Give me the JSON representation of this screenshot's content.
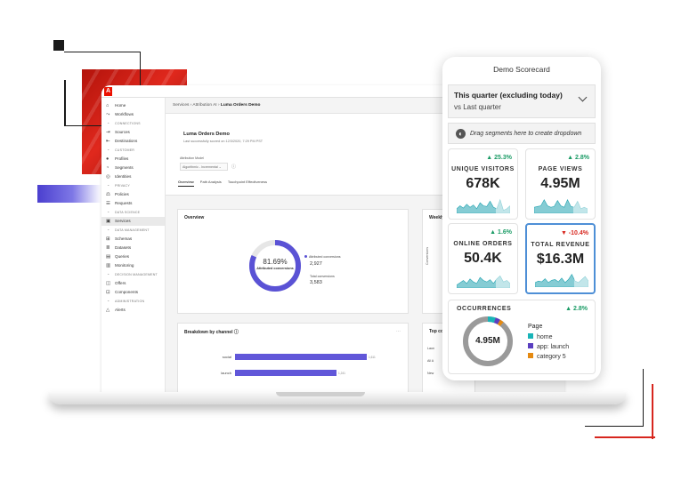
{
  "app": {
    "logo": "adobe-logo",
    "breadcrumb": {
      "root": "Services",
      "middle": "Attribution AI",
      "current": "Luma Orders Demo"
    },
    "page": {
      "title": "Luma Orders Demo",
      "subtitle": "Last successfully scored on 12/3/2020, 7:29 PM PST",
      "model_label": "Attribution Model",
      "model_value": "Algorithmic - Incremental"
    },
    "tabs": [
      "Overview",
      "Path Analysis",
      "Touchpoint Effectiveness"
    ],
    "sidebar": {
      "items": [
        {
          "type": "item",
          "label": "Home",
          "icon": "home-icon"
        },
        {
          "type": "item",
          "label": "Workflows",
          "icon": "workflow-icon"
        },
        {
          "type": "section",
          "label": "CONNECTIONS"
        },
        {
          "type": "item",
          "label": "Sources",
          "icon": "sources-icon"
        },
        {
          "type": "item",
          "label": "Destinations",
          "icon": "destinations-icon"
        },
        {
          "type": "section",
          "label": "CUSTOMER"
        },
        {
          "type": "item",
          "label": "Profiles",
          "icon": "profile-icon"
        },
        {
          "type": "item",
          "label": "Segments",
          "icon": "segments-icon"
        },
        {
          "type": "item",
          "label": "Identities",
          "icon": "identities-icon"
        },
        {
          "type": "section",
          "label": "PRIVACY"
        },
        {
          "type": "item",
          "label": "Policies",
          "icon": "policies-icon"
        },
        {
          "type": "item",
          "label": "Requests",
          "icon": "requests-icon"
        },
        {
          "type": "section",
          "label": "DATA SCIENCE"
        },
        {
          "type": "item",
          "label": "Services",
          "icon": "services-icon",
          "active": true
        },
        {
          "type": "section",
          "label": "DATA MANAGEMENT"
        },
        {
          "type": "item",
          "label": "Schemas",
          "icon": "schemas-icon"
        },
        {
          "type": "item",
          "label": "Datasets",
          "icon": "datasets-icon"
        },
        {
          "type": "item",
          "label": "Queries",
          "icon": "queries-icon"
        },
        {
          "type": "item",
          "label": "Monitoring",
          "icon": "monitoring-icon"
        },
        {
          "type": "section",
          "label": "DECISION MANAGEMENT"
        },
        {
          "type": "item",
          "label": "Offers",
          "icon": "offers-icon"
        },
        {
          "type": "item",
          "label": "Components",
          "icon": "components-icon"
        },
        {
          "type": "section",
          "label": "ADMINISTRATION"
        },
        {
          "type": "item",
          "label": "Alerts",
          "icon": "alerts-icon"
        }
      ]
    },
    "overview": {
      "title": "Overview",
      "percent": "81.69%",
      "caption": "Attributed conversions",
      "attributed_fraction": 0.8169,
      "legend_attributed": "Attributed conversions",
      "attributed_value": "2,927",
      "legend_total": "Total conversions",
      "total_value": "3,583"
    },
    "weekly": {
      "title": "Weekly",
      "axis": "Conversions"
    },
    "channel": {
      "title": "Breakdown by channel",
      "rows": [
        {
          "label": "social",
          "fraction": 1.0,
          "value": "1,611"
        },
        {
          "label": "launch",
          "fraction": 0.77,
          "value": "1,241"
        }
      ]
    },
    "top": {
      "title": "Top co",
      "items": [
        "Laun",
        "All A",
        "New"
      ]
    }
  },
  "scorecard": {
    "title": "Demo Scorecard",
    "period": "This quarter (excluding today)",
    "compare": "vs Last quarter",
    "drag_hint": "Drag segments here to create dropdown",
    "metrics": [
      {
        "label": "UNIQUE VISITORS",
        "value": "678K",
        "delta": "▲ 25.3%",
        "dir": "up",
        "selected": false
      },
      {
        "label": "PAGE VIEWS",
        "value": "4.95M",
        "delta": "▲ 2.8%",
        "dir": "up",
        "selected": false
      },
      {
        "label": "ONLINE ORDERS",
        "value": "50.4K",
        "delta": "▲ 1.6%",
        "dir": "up",
        "selected": false
      },
      {
        "label": "TOTAL REVENUE",
        "value": "$16.3M",
        "delta": "▼ -10.4%",
        "dir": "down",
        "selected": true
      }
    ],
    "occurrences": {
      "title": "OCCURRENCES",
      "delta": "▲ 2.8%",
      "value": "4.95M",
      "legend_title": "Page",
      "legend": [
        {
          "label": "home",
          "color": "#19b4b8"
        },
        {
          "label": "app: launch",
          "color": "#5a3fc0"
        },
        {
          "label": "category 5",
          "color": "#e58a12"
        }
      ]
    }
  },
  "colors": {
    "accent": "#5a52d5",
    "positive": "#1a9b65",
    "negative": "#d7261e",
    "brand_red": "#eb1000",
    "spark": "#21a3b0"
  }
}
